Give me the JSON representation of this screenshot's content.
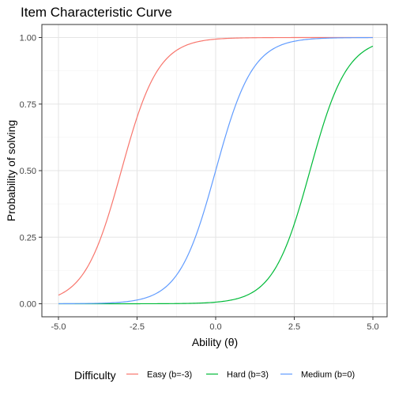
{
  "chart_data": {
    "type": "line",
    "title": "Item Characteristic Curve",
    "xlabel": "Ability (θ)",
    "ylabel": "Probability of solving",
    "xlim": [
      -5,
      5
    ],
    "ylim": [
      0,
      1
    ],
    "x_ticks": [
      -5,
      -2.5,
      0,
      2.5,
      5
    ],
    "x_tick_labels": [
      "-5.0",
      "-2.5",
      "0.0",
      "2.5",
      "5.0"
    ],
    "y_ticks": [
      0,
      0.25,
      0.5,
      0.75,
      1
    ],
    "y_tick_labels": [
      "0.00",
      "0.25",
      "0.50",
      "0.75",
      "1.00"
    ],
    "grid": true,
    "legend": {
      "title": "Difficulty",
      "position": "bottom"
    },
    "series": [
      {
        "name": "Easy (b=-3)",
        "b": -3,
        "a": 1.7,
        "color": "#F8766D"
      },
      {
        "name": "Hard (b=3)",
        "b": 3,
        "a": 1.7,
        "color": "#00BA38"
      },
      {
        "name": "Medium (b=0)",
        "b": 0,
        "a": 1.7,
        "color": "#619CFF"
      }
    ]
  }
}
